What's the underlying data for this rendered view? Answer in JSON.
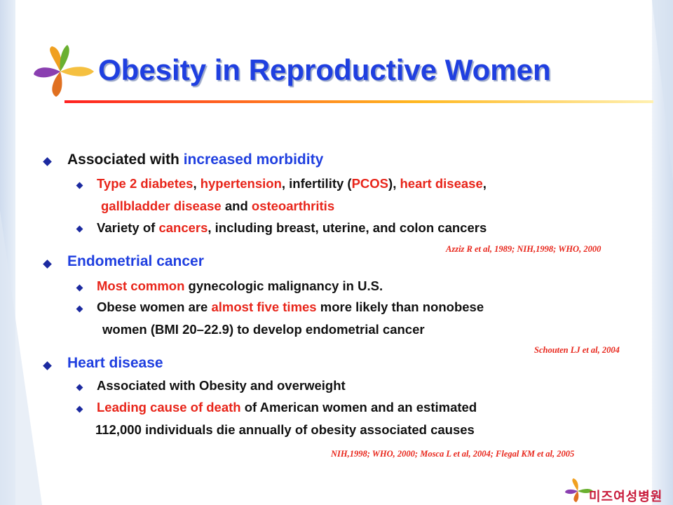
{
  "title": "Obesity in Reproductive Women",
  "sections": [
    {
      "heading_prefix": "Associated with ",
      "heading_highlight": "increased morbidity",
      "items": [
        {
          "line1": {
            "t1": "Type 2 diabetes",
            "t2": ", ",
            "t3": "hypertension",
            "t4": ", infertility (",
            "t5": "PCOS",
            "t6": "), ",
            "t7": "heart disease",
            "t8": ","
          },
          "line2": {
            "t1": "gallbladder disease",
            "t2": " and ",
            "t3": "osteoarthritis"
          }
        },
        {
          "line1": {
            "t1": "Variety of ",
            "t2": "cancers",
            "t3": ", including breast, uterine, and colon cancers"
          }
        }
      ],
      "citation": "Azziz R et al, 1989; NIH,1998; WHO, 2000"
    },
    {
      "heading": "Endometrial cancer",
      "items": [
        {
          "line1": {
            "t1": "Most common",
            "t2": " gynecologic malignancy in U.S."
          }
        },
        {
          "line1": {
            "t1": "Obese women are ",
            "t2": "almost five times",
            "t3": " more likely than nonobese"
          },
          "line2": {
            "t1": "women (BMI 20–22.9) to develop endometrial cancer"
          }
        }
      ],
      "citation": "Schouten LJ et al, 2004"
    },
    {
      "heading": "Heart disease",
      "items": [
        {
          "line1": {
            "t1": "Associated with Obesity and overweight"
          }
        },
        {
          "line1": {
            "t1": "Leading cause of death",
            "t2": " of American women and an estimated"
          },
          "line2": {
            "t1": "112,000 individuals die annually of obesity associated causes"
          }
        }
      ],
      "citation": "NIH,1998; WHO, 2000; Mosca L et al, 2004; Flegal KM et al, 2005"
    }
  ],
  "footer": {
    "brand": "미즈여성병원"
  },
  "colors": {
    "title": "#1f3fe0",
    "highlight_red": "#e8251a",
    "highlight_blue": "#1f3fe0",
    "bullet": "#1c2aa0"
  }
}
